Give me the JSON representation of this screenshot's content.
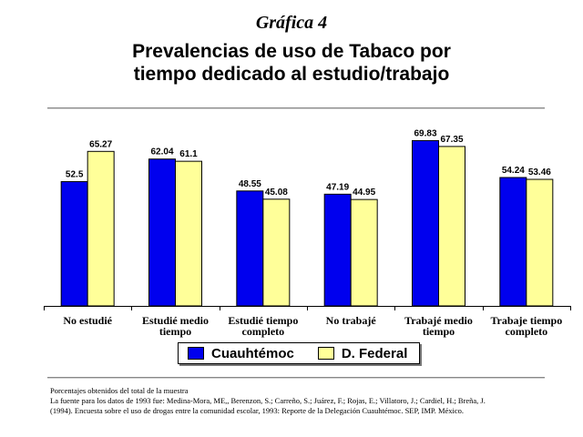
{
  "header": {
    "subtitle": "Gráfica 4",
    "title_line1": "Prevalencias de uso de Tabaco por",
    "title_line2": "tiempo dedicado al estudio/trabajo"
  },
  "colors": {
    "cuauhtemoc": "#0000ee",
    "dfederal": "#ffff99"
  },
  "chart_data": {
    "type": "bar",
    "categories": [
      [
        "No estudié"
      ],
      [
        "Estudié medio",
        "tiempo"
      ],
      [
        "Estudié tiempo",
        "completo"
      ],
      [
        "No trabajé"
      ],
      [
        "Trabajé medio",
        "tiempo"
      ],
      [
        "Trabaje tiempo",
        "completo"
      ]
    ],
    "series": [
      {
        "name": "Cuauhtémoc",
        "values": [
          52.5,
          62.04,
          48.55,
          47.19,
          69.83,
          54.24
        ]
      },
      {
        "name": "D. Federal",
        "values": [
          65.27,
          61.1,
          45.08,
          44.95,
          67.35,
          53.46
        ]
      }
    ],
    "value_labels": [
      [
        "52.5",
        "62.04",
        "48.55",
        "47.19",
        "69.83",
        "54.24"
      ],
      [
        "65.27",
        "61.1",
        "45.08",
        "44.95",
        "67.35",
        "53.46"
      ]
    ],
    "ylim": [
      0,
      80
    ],
    "grid": false,
    "legend": "bottom"
  },
  "footnotes": [
    "Porcentajes obtenidos del total de la muestra",
    "La fuente para los datos de 1993 fue: Medina-Mora, ME,, Berenzon, S.; Carreño, S.; Juárez, F.; Rojas, E.; Villatoro, J.; Cardiel, H.; Breña, J.",
    "(1994). Encuesta sobre el uso de drogas entre la comunidad escolar, 1993: Reporte de la Delegación Cuauhtémoc. SEP, IMP. México."
  ]
}
